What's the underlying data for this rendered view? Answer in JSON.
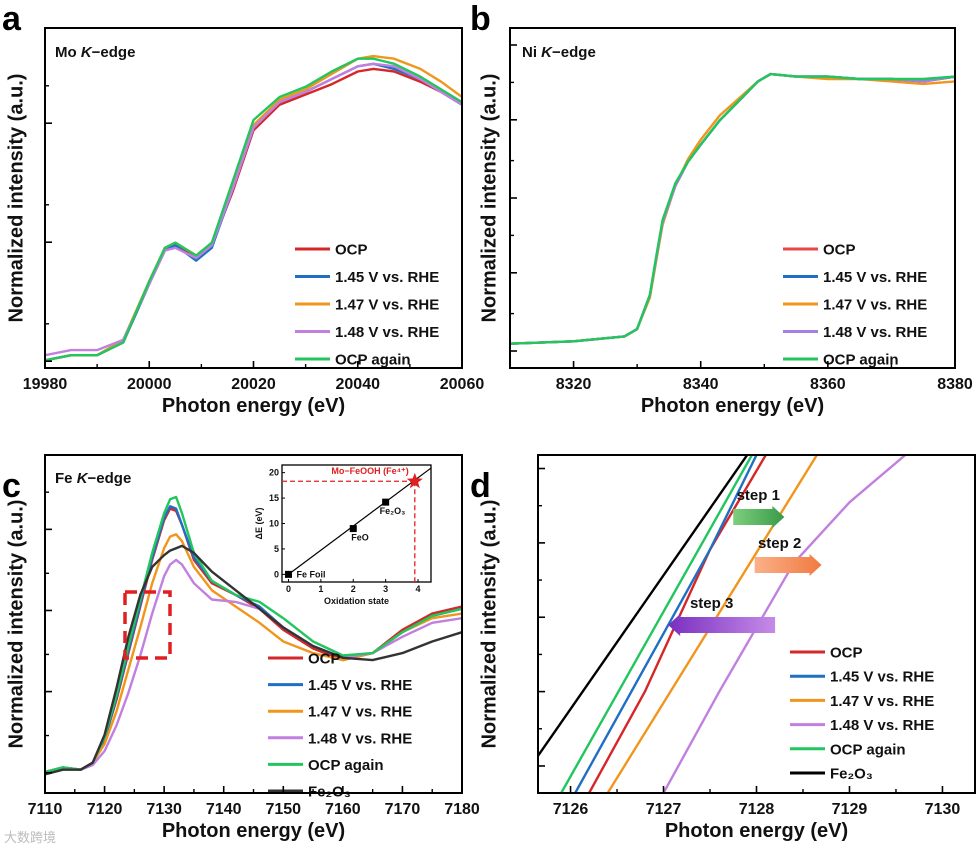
{
  "chart_data": [
    {
      "panel_label": "a",
      "type": "line",
      "title_element": "Mo ",
      "title_edge": "K",
      "title_suffix": "−edge",
      "xlabel": "Photon energy (eV)",
      "ylabel": "Normalized intensity (a.u.)",
      "xlim": [
        19980,
        20060
      ],
      "ylim": [
        -0.03,
        1.3
      ],
      "xticks": [
        19980,
        20000,
        20020,
        20040,
        20060
      ],
      "x": [
        19980,
        19985,
        19990,
        19995,
        20000,
        20003,
        20005,
        20009,
        20012,
        20016,
        20020,
        20025,
        20030,
        20035,
        20040,
        20043,
        20047,
        20052,
        20056,
        20060
      ],
      "series": [
        {
          "name": "OCP",
          "color": "#d62728",
          "y": [
            0.0,
            0.02,
            0.02,
            0.07,
            0.3,
            0.43,
            0.45,
            0.41,
            0.45,
            0.66,
            0.9,
            1.0,
            1.04,
            1.08,
            1.13,
            1.14,
            1.13,
            1.09,
            1.05,
            1.0
          ]
        },
        {
          "name": "1.45 V vs. RHE",
          "color": "#1f6fc4",
          "y": [
            0.0,
            0.02,
            0.02,
            0.07,
            0.3,
            0.43,
            0.45,
            0.39,
            0.44,
            0.67,
            0.91,
            1.01,
            1.05,
            1.1,
            1.15,
            1.16,
            1.14,
            1.1,
            1.05,
            1.0
          ]
        },
        {
          "name": "1.47 V vs. RHE",
          "color": "#f0961c",
          "y": [
            0.0,
            0.02,
            0.02,
            0.08,
            0.31,
            0.44,
            0.46,
            0.41,
            0.46,
            0.68,
            0.92,
            1.02,
            1.06,
            1.12,
            1.18,
            1.19,
            1.18,
            1.14,
            1.09,
            1.03
          ]
        },
        {
          "name": "1.48 V vs. RHE",
          "color": "#c17fe0",
          "y": [
            0.02,
            0.04,
            0.04,
            0.08,
            0.3,
            0.43,
            0.44,
            0.4,
            0.45,
            0.67,
            0.91,
            1.01,
            1.05,
            1.1,
            1.15,
            1.16,
            1.15,
            1.1,
            1.05,
            1.0
          ]
        },
        {
          "name": "OCP again",
          "color": "#22c55e",
          "y": [
            0.0,
            0.02,
            0.02,
            0.07,
            0.31,
            0.44,
            0.46,
            0.41,
            0.46,
            0.7,
            0.94,
            1.03,
            1.07,
            1.13,
            1.18,
            1.18,
            1.16,
            1.11,
            1.06,
            1.01
          ]
        }
      ]
    },
    {
      "panel_label": "b",
      "type": "line",
      "title_element": "Ni ",
      "title_edge": "K",
      "title_suffix": "−edge",
      "xlabel": "Photon energy (eV)",
      "ylabel": "Normalized intensity (a.u.)",
      "xlim": [
        8310,
        8380
      ],
      "ylim": [
        -0.1,
        1.3
      ],
      "xticks": [
        8320,
        8340,
        8360,
        8380
      ],
      "x": [
        8310,
        8320,
        8328,
        8330,
        8332,
        8333,
        8334,
        8336,
        8338,
        8340,
        8343,
        8346,
        8349,
        8351,
        8355,
        8360,
        8365,
        8370,
        8375,
        8380
      ],
      "series": [
        {
          "name": "OCP",
          "color": "#e8474a",
          "y": [
            0,
            0.01,
            0.03,
            0.06,
            0.2,
            0.35,
            0.5,
            0.65,
            0.75,
            0.82,
            0.92,
            1.0,
            1.08,
            1.11,
            1.1,
            1.1,
            1.09,
            1.09,
            1.08,
            1.1
          ]
        },
        {
          "name": "1.45 V vs. RHE",
          "color": "#1f6fc4",
          "y": [
            0,
            0.01,
            0.03,
            0.06,
            0.2,
            0.35,
            0.5,
            0.65,
            0.75,
            0.82,
            0.92,
            1.0,
            1.08,
            1.11,
            1.1,
            1.1,
            1.09,
            1.09,
            1.08,
            1.1
          ]
        },
        {
          "name": "1.47 V vs. RHE",
          "color": "#f0961c",
          "y": [
            0,
            0.01,
            0.03,
            0.06,
            0.19,
            0.34,
            0.49,
            0.65,
            0.76,
            0.84,
            0.94,
            1.01,
            1.08,
            1.11,
            1.1,
            1.09,
            1.09,
            1.08,
            1.07,
            1.08
          ]
        },
        {
          "name": "1.48 V vs. RHE",
          "color": "#a77fe0",
          "y": [
            0,
            0.01,
            0.03,
            0.06,
            0.2,
            0.35,
            0.5,
            0.65,
            0.75,
            0.82,
            0.92,
            1.0,
            1.08,
            1.11,
            1.1,
            1.1,
            1.09,
            1.09,
            1.08,
            1.1
          ]
        },
        {
          "name": "OCP again",
          "color": "#22c55e",
          "y": [
            0,
            0.01,
            0.03,
            0.06,
            0.2,
            0.36,
            0.51,
            0.66,
            0.75,
            0.82,
            0.92,
            1.0,
            1.08,
            1.11,
            1.1,
            1.1,
            1.09,
            1.09,
            1.09,
            1.1
          ]
        }
      ]
    },
    {
      "panel_label": "c",
      "type": "line",
      "title_element": "Fe ",
      "title_edge": "K",
      "title_suffix": "−edge",
      "xlabel": "Photon energy (eV)",
      "ylabel": "Normalized intensity (a.u.)",
      "xlim": [
        7110,
        7180
      ],
      "ylim": [
        -0.05,
        1.4
      ],
      "xticks": [
        7110,
        7120,
        7130,
        7140,
        7150,
        7160,
        7170,
        7180
      ],
      "x": [
        7110,
        7113,
        7116,
        7118,
        7120,
        7122,
        7124,
        7126,
        7128,
        7130,
        7131,
        7132,
        7133,
        7135,
        7138,
        7142,
        7146,
        7150,
        7155,
        7160,
        7165,
        7170,
        7175,
        7180
      ],
      "series": [
        {
          "name": "OCP",
          "color": "#d62728",
          "y": [
            0.04,
            0.06,
            0.05,
            0.08,
            0.18,
            0.35,
            0.55,
            0.75,
            0.95,
            1.12,
            1.17,
            1.16,
            1.1,
            0.95,
            0.85,
            0.8,
            0.74,
            0.65,
            0.57,
            0.52,
            0.55,
            0.65,
            0.72,
            0.75
          ]
        },
        {
          "name": "1.45 V vs. RHE",
          "color": "#1f6fc4",
          "y": [
            0.04,
            0.06,
            0.05,
            0.08,
            0.18,
            0.36,
            0.56,
            0.76,
            0.96,
            1.13,
            1.18,
            1.17,
            1.1,
            0.96,
            0.86,
            0.8,
            0.75,
            0.66,
            0.58,
            0.53,
            0.55,
            0.64,
            0.71,
            0.74
          ]
        },
        {
          "name": "1.47 V vs. RHE",
          "color": "#f0961c",
          "y": [
            0.04,
            0.06,
            0.05,
            0.08,
            0.16,
            0.3,
            0.48,
            0.66,
            0.85,
            1.0,
            1.05,
            1.06,
            1.03,
            0.92,
            0.82,
            0.75,
            0.68,
            0.6,
            0.55,
            0.52,
            0.55,
            0.64,
            0.7,
            0.72
          ]
        },
        {
          "name": "1.48 V vs. RHE",
          "color": "#c17fe0",
          "y": [
            0.04,
            0.06,
            0.05,
            0.07,
            0.13,
            0.24,
            0.38,
            0.54,
            0.72,
            0.88,
            0.93,
            0.95,
            0.93,
            0.85,
            0.78,
            0.77,
            0.74,
            0.66,
            0.58,
            0.53,
            0.55,
            0.62,
            0.68,
            0.7
          ]
        },
        {
          "name": "OCP again",
          "color": "#22c55e",
          "y": [
            0.04,
            0.06,
            0.05,
            0.08,
            0.19,
            0.37,
            0.58,
            0.78,
            0.98,
            1.15,
            1.21,
            1.22,
            1.15,
            0.98,
            0.86,
            0.8,
            0.77,
            0.7,
            0.6,
            0.54,
            0.55,
            0.64,
            0.71,
            0.74
          ]
        },
        {
          "name": "Fe₂O₃",
          "color": "#333333",
          "y": [
            0.03,
            0.05,
            0.05,
            0.08,
            0.2,
            0.4,
            0.62,
            0.8,
            0.92,
            0.97,
            0.99,
            1.0,
            1.01,
            0.98,
            0.9,
            0.82,
            0.74,
            0.66,
            0.58,
            0.53,
            0.52,
            0.55,
            0.6,
            0.64
          ]
        }
      ],
      "inset": {
        "type": "scatter",
        "xlabel": "Oxidation state",
        "ylabel": "ΔE (eV)",
        "xlim": [
          -0.2,
          4.4
        ],
        "ylim": [
          -1.5,
          21.5
        ],
        "xticks": [
          0,
          1,
          2,
          3,
          4
        ],
        "yticks": [
          0,
          5,
          10,
          15,
          20
        ],
        "points": [
          {
            "label": "Fe Foil",
            "x": 0,
            "y": 0
          },
          {
            "label": "FeO",
            "x": 2,
            "y": 9
          },
          {
            "label": "Fe₂O₃",
            "x": 3,
            "y": 14.2
          }
        ],
        "fit_line": {
          "x": [
            0,
            4.4
          ],
          "y": [
            0,
            20.9
          ]
        },
        "highlight": {
          "label": "Mo−FeOOH (Fe⁴⁺)",
          "x": 3.9,
          "y": 18.3,
          "color": "#e02020"
        }
      }
    },
    {
      "panel_label": "d",
      "type": "line",
      "xlabel": "Photon energy (eV)",
      "ylabel": "Normalized intensity (a.u.)",
      "xlim": [
        7125.65,
        7130.35
      ],
      "ylim": [
        0,
        1
      ],
      "xticks": [
        7126,
        7127,
        7128,
        7129,
        7130
      ],
      "series": [
        {
          "name": "OCP",
          "color": "#d62728",
          "x": [
            7126.2,
            7126.8,
            7127.5,
            7128.1
          ],
          "y": [
            0,
            0.3,
            0.72,
            1
          ]
        },
        {
          "name": "1.45 V vs. RHE",
          "color": "#1f6fc4",
          "x": [
            7126.05,
            7127.5,
            7128.0
          ],
          "y": [
            0,
            0.72,
            1
          ]
        },
        {
          "name": "1.47 V vs. RHE",
          "color": "#f0961c",
          "x": [
            7126.4,
            7128.65
          ],
          "y": [
            0,
            1
          ]
        },
        {
          "name": "1.48 V vs. RHE",
          "color": "#c17fe0",
          "x": [
            7127.0,
            7127.6,
            7128.4,
            7129.0,
            7129.6
          ],
          "y": [
            0,
            0.3,
            0.68,
            0.86,
            1
          ]
        },
        {
          "name": "OCP again",
          "color": "#22c55e",
          "x": [
            7125.9,
            7127.95
          ],
          "y": [
            0,
            1
          ]
        },
        {
          "name": "Fe₂O₃",
          "color": "#000000",
          "x": [
            7125.65,
            7127.9
          ],
          "y": [
            0.11,
            1
          ]
        }
      ],
      "annotations": [
        {
          "label": "step 1",
          "from": 7127.75,
          "to": 7128.3,
          "color": "#5cb85c"
        },
        {
          "label": "step 2",
          "from": 7127.98,
          "to": 7128.7,
          "color": "#f7925a"
        },
        {
          "label": "step 3",
          "from": 7128.2,
          "to": 7127.05,
          "color": "#9b4fd0"
        }
      ]
    }
  ],
  "watermark": "大数跨境"
}
